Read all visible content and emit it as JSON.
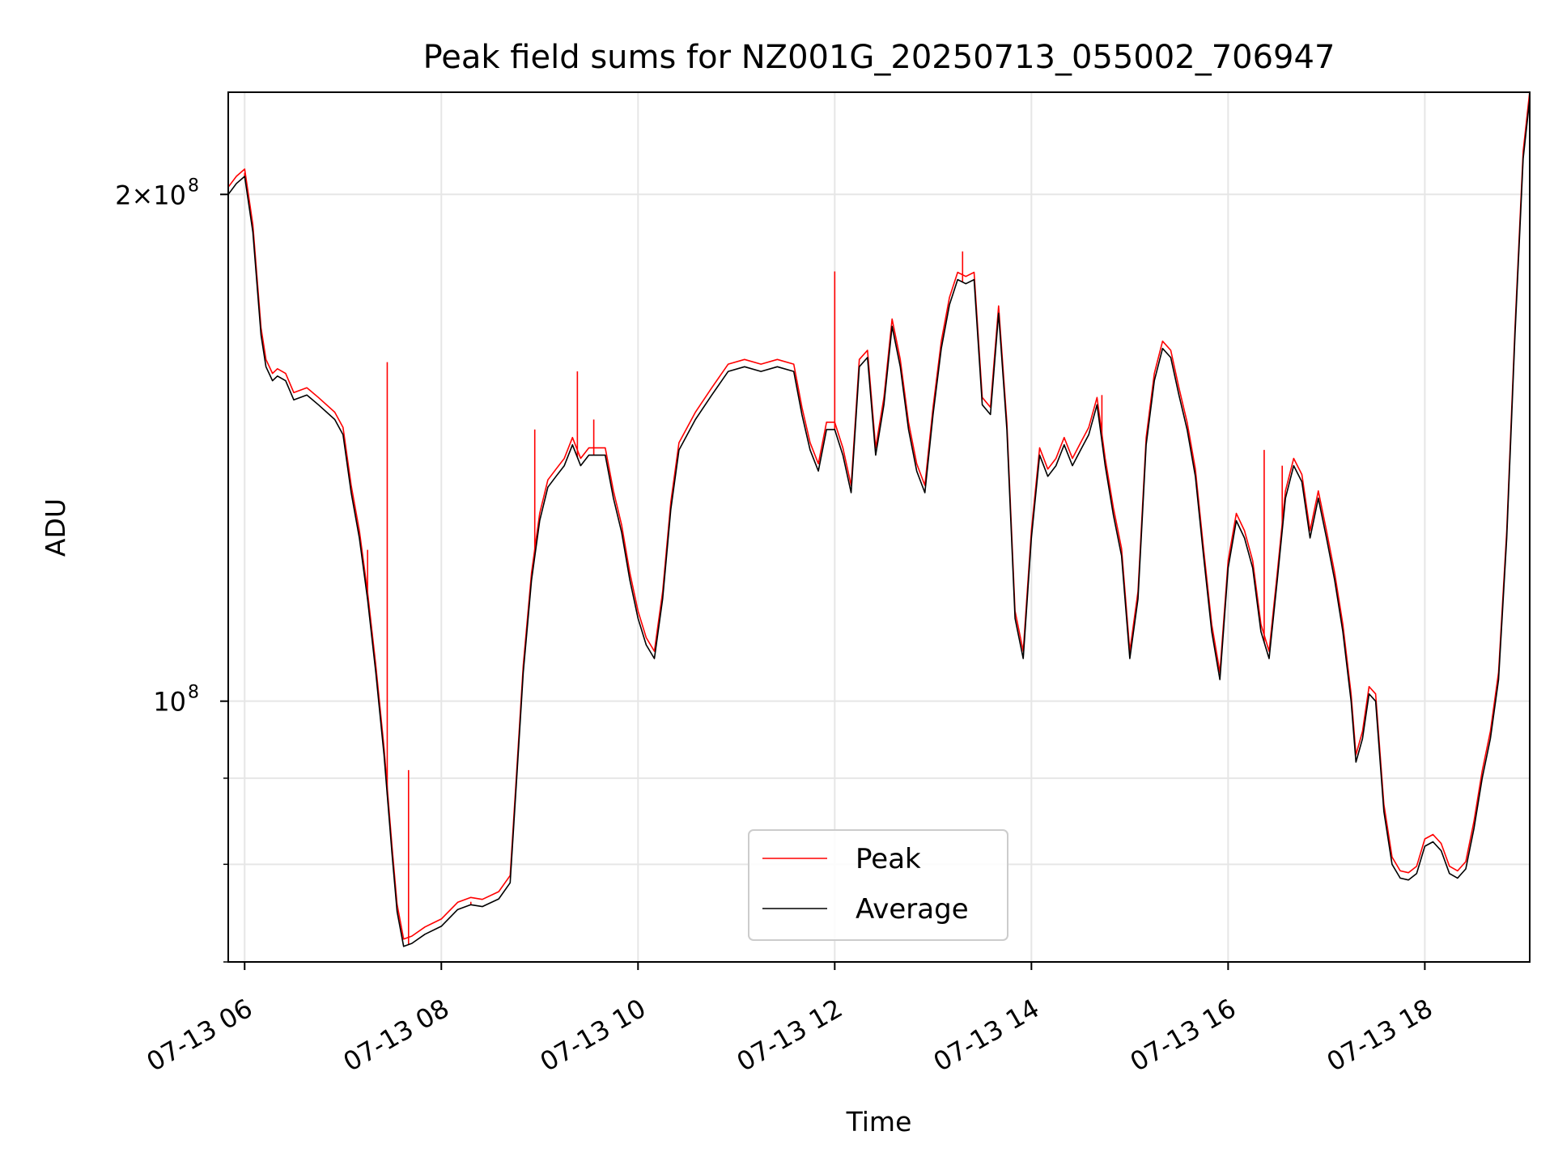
{
  "chart_data": {
    "type": "line",
    "title": "Peak field sums for NZ001G_20250713_055002_706947",
    "xlabel": "Time",
    "ylabel": "ADU",
    "x_unit": "time of day (date 07-13)",
    "xlim": [
      "07-13 05:50",
      "07-13 19:04"
    ],
    "ylim": [
      70000000,
      230000000
    ],
    "yscale": "log",
    "grid": true,
    "legend": {
      "position": "lower-center"
    },
    "x_tick_labels": [
      "07-13 06",
      "07-13 08",
      "07-13 10",
      "07-13 12",
      "07-13 14",
      "07-13 16",
      "07-13 18"
    ],
    "y_tick_labels": [
      {
        "value": 200000000,
        "base": "2×10",
        "exp": "8"
      },
      {
        "value": 100000000,
        "base": "10",
        "exp": "8"
      }
    ],
    "series": [
      {
        "name": "Peak",
        "color": "#ff0000",
        "spikes": [
          [
            "06:00",
            206000000
          ],
          [
            "07:15",
            123000000
          ],
          [
            "07:27",
            159000000
          ],
          [
            "07:40",
            91000000
          ],
          [
            "08:18",
            76000000
          ],
          [
            "08:57",
            145000000
          ],
          [
            "09:23",
            157000000
          ],
          [
            "09:33",
            147000000
          ],
          [
            "12:00",
            180000000
          ],
          [
            "13:18",
            185000000
          ],
          [
            "14:43",
            152000000
          ],
          [
            "16:22",
            141000000
          ],
          [
            "16:33",
            138000000
          ]
        ]
      },
      {
        "name": "Average",
        "color": "#000000",
        "points": [
          [
            "05:50",
            200000000
          ],
          [
            "05:55",
            203000000
          ],
          [
            "06:00",
            205000000
          ],
          [
            "06:05",
            190000000
          ],
          [
            "06:10",
            165000000
          ],
          [
            "06:13",
            158000000
          ],
          [
            "06:17",
            155000000
          ],
          [
            "06:20",
            156000000
          ],
          [
            "06:25",
            155000000
          ],
          [
            "06:30",
            151000000
          ],
          [
            "06:38",
            152000000
          ],
          [
            "06:45",
            150000000
          ],
          [
            "06:55",
            147000000
          ],
          [
            "07:00",
            144000000
          ],
          [
            "07:05",
            133000000
          ],
          [
            "07:10",
            125000000
          ],
          [
            "07:15",
            115000000
          ],
          [
            "07:20",
            104000000
          ],
          [
            "07:25",
            93000000
          ],
          [
            "07:30",
            81000000
          ],
          [
            "07:33",
            75000000
          ],
          [
            "07:37",
            71500000
          ],
          [
            "07:42",
            71800000
          ],
          [
            "07:50",
            72700000
          ],
          [
            "08:00",
            73500000
          ],
          [
            "08:10",
            75200000
          ],
          [
            "08:18",
            75700000
          ],
          [
            "08:25",
            75500000
          ],
          [
            "08:35",
            76300000
          ],
          [
            "08:42",
            78000000
          ],
          [
            "08:46",
            90000000
          ],
          [
            "08:50",
            104000000
          ],
          [
            "08:55",
            118000000
          ],
          [
            "09:00",
            128000000
          ],
          [
            "09:05",
            134000000
          ],
          [
            "09:10",
            136000000
          ],
          [
            "09:15",
            138000000
          ],
          [
            "09:20",
            142000000
          ],
          [
            "09:25",
            138000000
          ],
          [
            "09:30",
            140000000
          ],
          [
            "09:40",
            140000000
          ],
          [
            "09:45",
            132000000
          ],
          [
            "09:50",
            126000000
          ],
          [
            "09:55",
            118000000
          ],
          [
            "10:00",
            112000000
          ],
          [
            "10:05",
            108000000
          ],
          [
            "10:10",
            106000000
          ],
          [
            "10:15",
            115000000
          ],
          [
            "10:20",
            130000000
          ],
          [
            "10:25",
            141000000
          ],
          [
            "10:35",
            147000000
          ],
          [
            "10:45",
            152000000
          ],
          [
            "10:55",
            157000000
          ],
          [
            "11:05",
            158000000
          ],
          [
            "11:15",
            157000000
          ],
          [
            "11:25",
            158000000
          ],
          [
            "11:35",
            157000000
          ],
          [
            "11:40",
            148000000
          ],
          [
            "11:45",
            141000000
          ],
          [
            "11:50",
            137000000
          ],
          [
            "11:55",
            145000000
          ],
          [
            "12:00",
            145000000
          ],
          [
            "12:05",
            140000000
          ],
          [
            "12:10",
            133000000
          ],
          [
            "12:15",
            158000000
          ],
          [
            "12:20",
            160000000
          ],
          [
            "12:25",
            140000000
          ],
          [
            "12:30",
            150000000
          ],
          [
            "12:35",
            167000000
          ],
          [
            "12:40",
            158000000
          ],
          [
            "12:45",
            145000000
          ],
          [
            "12:50",
            137000000
          ],
          [
            "12:55",
            133000000
          ],
          [
            "13:00",
            148000000
          ],
          [
            "13:05",
            162000000
          ],
          [
            "13:10",
            172000000
          ],
          [
            "13:15",
            178000000
          ],
          [
            "13:20",
            177000000
          ],
          [
            "13:25",
            178000000
          ],
          [
            "13:30",
            150000000
          ],
          [
            "13:35",
            148000000
          ],
          [
            "13:40",
            170000000
          ],
          [
            "13:45",
            145000000
          ],
          [
            "13:50",
            112000000
          ],
          [
            "13:55",
            106000000
          ],
          [
            "14:00",
            125000000
          ],
          [
            "14:05",
            140000000
          ],
          [
            "14:10",
            136000000
          ],
          [
            "14:15",
            138000000
          ],
          [
            "14:20",
            142000000
          ],
          [
            "14:25",
            138000000
          ],
          [
            "14:30",
            141000000
          ],
          [
            "14:35",
            144000000
          ],
          [
            "14:40",
            150000000
          ],
          [
            "14:45",
            138000000
          ],
          [
            "14:50",
            129000000
          ],
          [
            "14:55",
            122000000
          ],
          [
            "15:00",
            106000000
          ],
          [
            "15:05",
            115000000
          ],
          [
            "15:10",
            142000000
          ],
          [
            "15:15",
            155000000
          ],
          [
            "15:20",
            162000000
          ],
          [
            "15:25",
            160000000
          ],
          [
            "15:30",
            152000000
          ],
          [
            "15:35",
            145000000
          ],
          [
            "15:40",
            136000000
          ],
          [
            "15:45",
            122000000
          ],
          [
            "15:50",
            110000000
          ],
          [
            "15:55",
            103000000
          ],
          [
            "16:00",
            120000000
          ],
          [
            "16:05",
            128000000
          ],
          [
            "16:10",
            125000000
          ],
          [
            "16:15",
            120000000
          ],
          [
            "16:20",
            110000000
          ],
          [
            "16:25",
            106000000
          ],
          [
            "16:30",
            118000000
          ],
          [
            "16:35",
            132000000
          ],
          [
            "16:40",
            138000000
          ],
          [
            "16:45",
            135000000
          ],
          [
            "16:50",
            125000000
          ],
          [
            "16:55",
            132000000
          ],
          [
            "17:00",
            125000000
          ],
          [
            "17:05",
            118000000
          ],
          [
            "17:10",
            110000000
          ],
          [
            "17:15",
            100000000
          ],
          [
            "17:18",
            92000000
          ],
          [
            "17:22",
            95000000
          ],
          [
            "17:26",
            101000000
          ],
          [
            "17:30",
            100000000
          ],
          [
            "17:35",
            86000000
          ],
          [
            "17:40",
            80000000
          ],
          [
            "17:45",
            78500000
          ],
          [
            "17:50",
            78300000
          ],
          [
            "17:55",
            79000000
          ],
          [
            "18:00",
            82000000
          ],
          [
            "18:05",
            82500000
          ],
          [
            "18:10",
            81500000
          ],
          [
            "18:15",
            79000000
          ],
          [
            "18:20",
            78500000
          ],
          [
            "18:25",
            79500000
          ],
          [
            "18:30",
            84000000
          ],
          [
            "18:35",
            90000000
          ],
          [
            "18:40",
            95000000
          ],
          [
            "18:45",
            103000000
          ],
          [
            "18:50",
            125000000
          ],
          [
            "18:55",
            165000000
          ],
          [
            "19:00",
            210000000
          ],
          [
            "19:04",
            228000000
          ]
        ]
      }
    ]
  }
}
